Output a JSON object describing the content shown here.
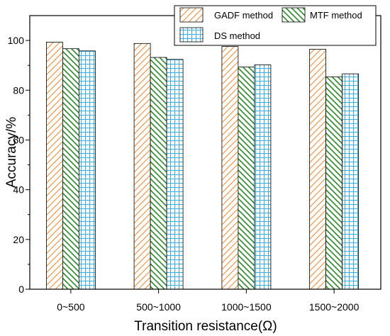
{
  "chart_data": {
    "type": "bar",
    "categories": [
      "0~500",
      "500~1000",
      "1000~1500",
      "1500~2000"
    ],
    "series": [
      {
        "name": "GADF method",
        "values": [
          99.3,
          98.8,
          97.6,
          96.5
        ],
        "color": "#f28c3a",
        "pattern": "diagonal-forward"
      },
      {
        "name": "MTF method",
        "values": [
          96.7,
          93.2,
          89.3,
          85.4
        ],
        "color": "#2a8a2a",
        "pattern": "diagonal-backward"
      },
      {
        "name": "DS method",
        "values": [
          95.8,
          92.4,
          90.2,
          86.6
        ],
        "color": "#3aaee8",
        "pattern": "grid"
      }
    ],
    "xlabel": "Transition resistance(Ω)",
    "ylabel": "Accuracy/%",
    "ylim": [
      0,
      110
    ],
    "yticks": [
      0,
      20,
      40,
      60,
      80,
      100
    ],
    "grid": false,
    "legend_position": "top-right"
  }
}
